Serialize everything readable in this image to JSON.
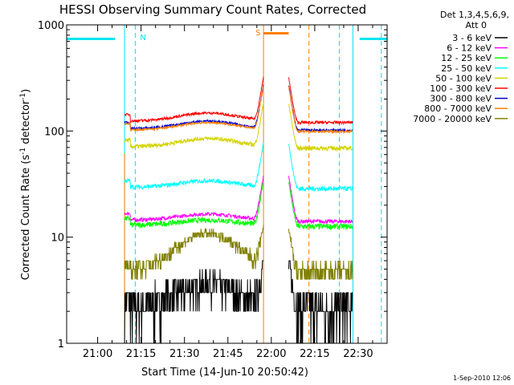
{
  "chart_data": {
    "type": "line",
    "title": "HESSI Observing Summary Count Rates, Corrected",
    "xlabel": "Start Time (14-Jun-10 20:50:42)",
    "ylabel_parts": [
      "Corrected Count Rate (s",
      "-1",
      " detector",
      "-1",
      ")"
    ],
    "yscale": "log",
    "ylim": [
      1,
      1000
    ],
    "y_ticks": [
      "1",
      "10",
      "100",
      "1000"
    ],
    "xlim_minutes": [
      -10.7,
      100
    ],
    "x_ticks": [
      "21:00",
      "21:15",
      "21:30",
      "21:45",
      "22:00",
      "22:15",
      "22:30"
    ],
    "data_start_minutes": 9.3,
    "data_end_minutes": 88.2,
    "night_start_minutes": 57.3,
    "night_end_minutes": 66.0,
    "legend_header": [
      "Det 1,3,4,5,6,9,",
      "Att 0"
    ],
    "footer": "1-Sep-2010 12:06",
    "series": [
      {
        "name": "3 - 6 keV",
        "color": "#000000",
        "base": 2.2,
        "bump": 1.4,
        "noise": 0.55,
        "steps": true
      },
      {
        "name": "6 - 12 keV",
        "color": "#ff00ff",
        "base": 14.5,
        "bump": 2.0,
        "noise": 0.6
      },
      {
        "name": "12 - 25 keV",
        "color": "#00ff00",
        "base": 13.0,
        "bump": 1.5,
        "noise": 0.8
      },
      {
        "name": "25 - 50 keV",
        "color": "#00ffff",
        "base": 29.5,
        "bump": 4.5,
        "noise": 1.5
      },
      {
        "name": "50 - 100 keV",
        "color": "#d4d400",
        "base": 71.0,
        "bump": 14.0,
        "noise": 3.5
      },
      {
        "name": "100 - 300 keV",
        "color": "#ff0000",
        "base": 124.0,
        "bump": 24.0,
        "noise": 4.0
      },
      {
        "name": "300 - 800 keV",
        "color": "#0000cc",
        "base": 105.0,
        "bump": 19.0,
        "noise": 3.0
      },
      {
        "name": "800 - 7000 keV",
        "color": "#ff7f00",
        "base": 102.0,
        "bump": 18.0,
        "noise": 2.5
      },
      {
        "name": "7000 - 20000 keV",
        "color": "#808000",
        "base": 4.8,
        "bump": 6.0,
        "noise": 0.5,
        "steps": true
      }
    ],
    "saa": {
      "label": "N",
      "color": "#00e5ee",
      "bars": [
        [
          -10.7,
          6.0
        ],
        [
          90.5,
          100
        ]
      ],
      "dashes": [
        13.0,
        83.5,
        98.0
      ],
      "solid": [
        9.3,
        88.2
      ]
    },
    "night": {
      "label": "S",
      "color": "#ff7f00",
      "bar": [
        57.3,
        66.0
      ],
      "dashes": [
        73.0
      ]
    }
  }
}
